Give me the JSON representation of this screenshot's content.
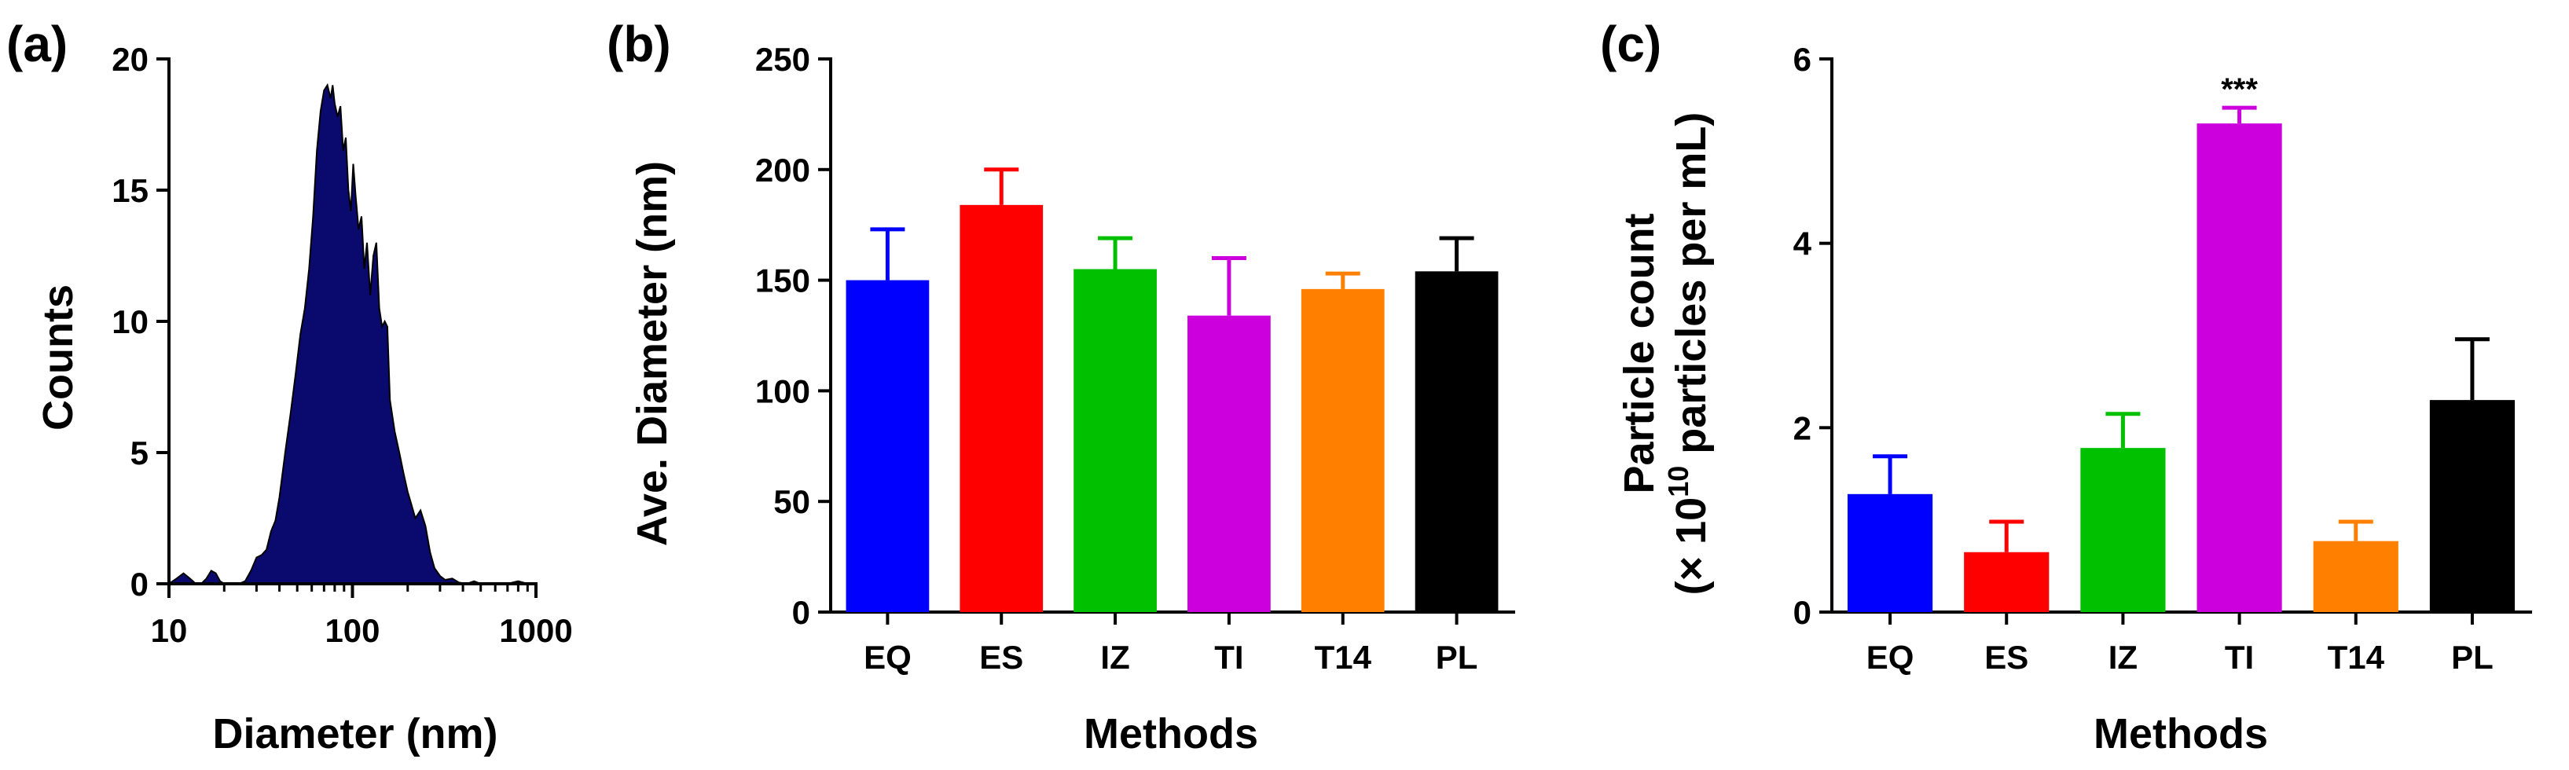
{
  "colors": {
    "EQ": "#0000ff",
    "ES": "#ff0000",
    "IZ": "#00c000",
    "TI": "#cc00dd",
    "T14": "#ff8000",
    "PL": "#000000",
    "histogram": "#0a0a6e"
  },
  "chart_data": [
    {
      "panel": "(a)",
      "type": "area",
      "xscale": "log",
      "xlabel": "Diameter (nm)",
      "ylabel": "Counts",
      "xlim": [
        10,
        1000
      ],
      "ylim": [
        0,
        20
      ],
      "xticks": [
        "10",
        "100",
        "1000"
      ],
      "yticks": [
        "0",
        "5",
        "10",
        "15",
        "20"
      ],
      "x": [
        10,
        11,
        12,
        13,
        14,
        15,
        16,
        17,
        18,
        19,
        20,
        22,
        24,
        26,
        28,
        30,
        32,
        34,
        36,
        38,
        40,
        43,
        46,
        49,
        52,
        55,
        58,
        61,
        64,
        67,
        70,
        73,
        76,
        78,
        80,
        83,
        86,
        89,
        92,
        95,
        98,
        101,
        104,
        108,
        112,
        116,
        120,
        125,
        130,
        135,
        140,
        145,
        150,
        155,
        160,
        170,
        180,
        190,
        200,
        210,
        220,
        235,
        250,
        265,
        280,
        300,
        320,
        350,
        380,
        420,
        460,
        500,
        550,
        600,
        700,
        800,
        900,
        1000
      ],
      "y": [
        0,
        0.2,
        0.4,
        0.2,
        0,
        0,
        0.2,
        0.5,
        0.4,
        0.1,
        0,
        0,
        0,
        0.1,
        0.5,
        1.0,
        1.1,
        1.3,
        2.0,
        2.4,
        3.3,
        5.0,
        6.5,
        8.0,
        9.5,
        10.5,
        12.0,
        14.0,
        16.5,
        18.0,
        18.8,
        19.0,
        18.5,
        19.0,
        18.3,
        17.8,
        18.2,
        16.5,
        17.0,
        15.0,
        14.2,
        16.0,
        14.8,
        13.5,
        14.0,
        12.0,
        13.0,
        11.0,
        12.5,
        13.0,
        10.5,
        9.8,
        10.0,
        9.8,
        7.0,
        5.8,
        5.0,
        4.2,
        3.5,
        3.0,
        2.5,
        2.8,
        2.2,
        1.2,
        0.6,
        0.3,
        0.15,
        0.2,
        0.05,
        0,
        0.1,
        0,
        0,
        0,
        0,
        0.1,
        0,
        0
      ]
    },
    {
      "panel": "(b)",
      "type": "bar",
      "categories": [
        "EQ",
        "ES",
        "IZ",
        "TI",
        "T14",
        "PL"
      ],
      "values": [
        150,
        184,
        155,
        134,
        146,
        154
      ],
      "errors": [
        23,
        16,
        14,
        26,
        7,
        15
      ],
      "xlabel": "Methods",
      "ylabel": "Ave. Diameter (nm)",
      "ylim": [
        0,
        250
      ],
      "yticks": [
        "0",
        "50",
        "100",
        "150",
        "200",
        "250"
      ]
    },
    {
      "panel": "(c)",
      "type": "bar",
      "categories": [
        "EQ",
        "ES",
        "IZ",
        "TI",
        "T14",
        "PL"
      ],
      "values": [
        1.28,
        0.65,
        1.78,
        5.3,
        0.77,
        2.3
      ],
      "errors": [
        0.41,
        0.33,
        0.37,
        0.17,
        0.21,
        0.66
      ],
      "annotations": [
        {
          "category": "TI",
          "text": "***"
        }
      ],
      "xlabel": "Methods",
      "ylabel_line1": "Particle count",
      "ylabel_line2_pre": "(× 10",
      "ylabel_line2_sup": "10",
      "ylabel_line2_post": " particles per mL)",
      "ylim": [
        0,
        6
      ],
      "yticks": [
        "0",
        "2",
        "4",
        "6"
      ]
    }
  ]
}
